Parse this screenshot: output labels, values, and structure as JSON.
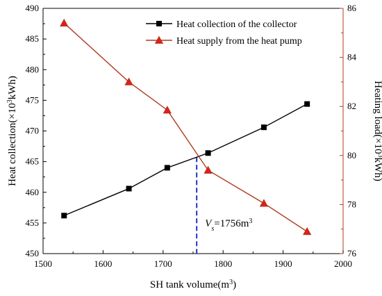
{
  "chart_data": {
    "type": "line",
    "x_axis": {
      "label_prefix": "SH tank volume(m",
      "label_sup": "3",
      "label_suffix": ")",
      "range": [
        1500,
        2000
      ],
      "ticks": [
        1500,
        1600,
        1700,
        1800,
        1900,
        2000
      ]
    },
    "y_left": {
      "label_prefix": "Heat collection(×10",
      "label_sup": "3",
      "label_suffix": "kWh)",
      "range": [
        450,
        490
      ],
      "ticks": [
        450,
        455,
        460,
        465,
        470,
        475,
        480,
        485,
        490
      ],
      "color": "#000000"
    },
    "y_right": {
      "label_prefix": "Heating load(×10",
      "label_sup": "3",
      "label_suffix": "kWh)",
      "range": [
        76,
        86
      ],
      "ticks": [
        76,
        78,
        80,
        82,
        84,
        86
      ],
      "color": "#b03a1e"
    },
    "series": [
      {
        "name": "Heat collection of the collector",
        "axis": "left",
        "marker": "square",
        "color": "#000000",
        "x": [
          1535,
          1643,
          1707,
          1775,
          1868,
          1940
        ],
        "y": [
          456.2,
          460.6,
          464.0,
          466.4,
          470.6,
          474.4
        ]
      },
      {
        "name": "Heat supply from the heat pump",
        "axis": "right",
        "marker": "triangle",
        "color": "#b03a1e",
        "marker_fill": "#dd1f1f",
        "x": [
          1535,
          1643,
          1707,
          1775,
          1868,
          1940
        ],
        "y": [
          85.4,
          83.0,
          81.85,
          79.4,
          78.05,
          76.9
        ]
      }
    ],
    "annotation": {
      "x_value": 1756,
      "line_color": "#2230c8",
      "text_var": "V",
      "text_sub": "s",
      "text_eq": "=1756m",
      "text_sup": "3"
    },
    "legend_position": "top-right"
  }
}
